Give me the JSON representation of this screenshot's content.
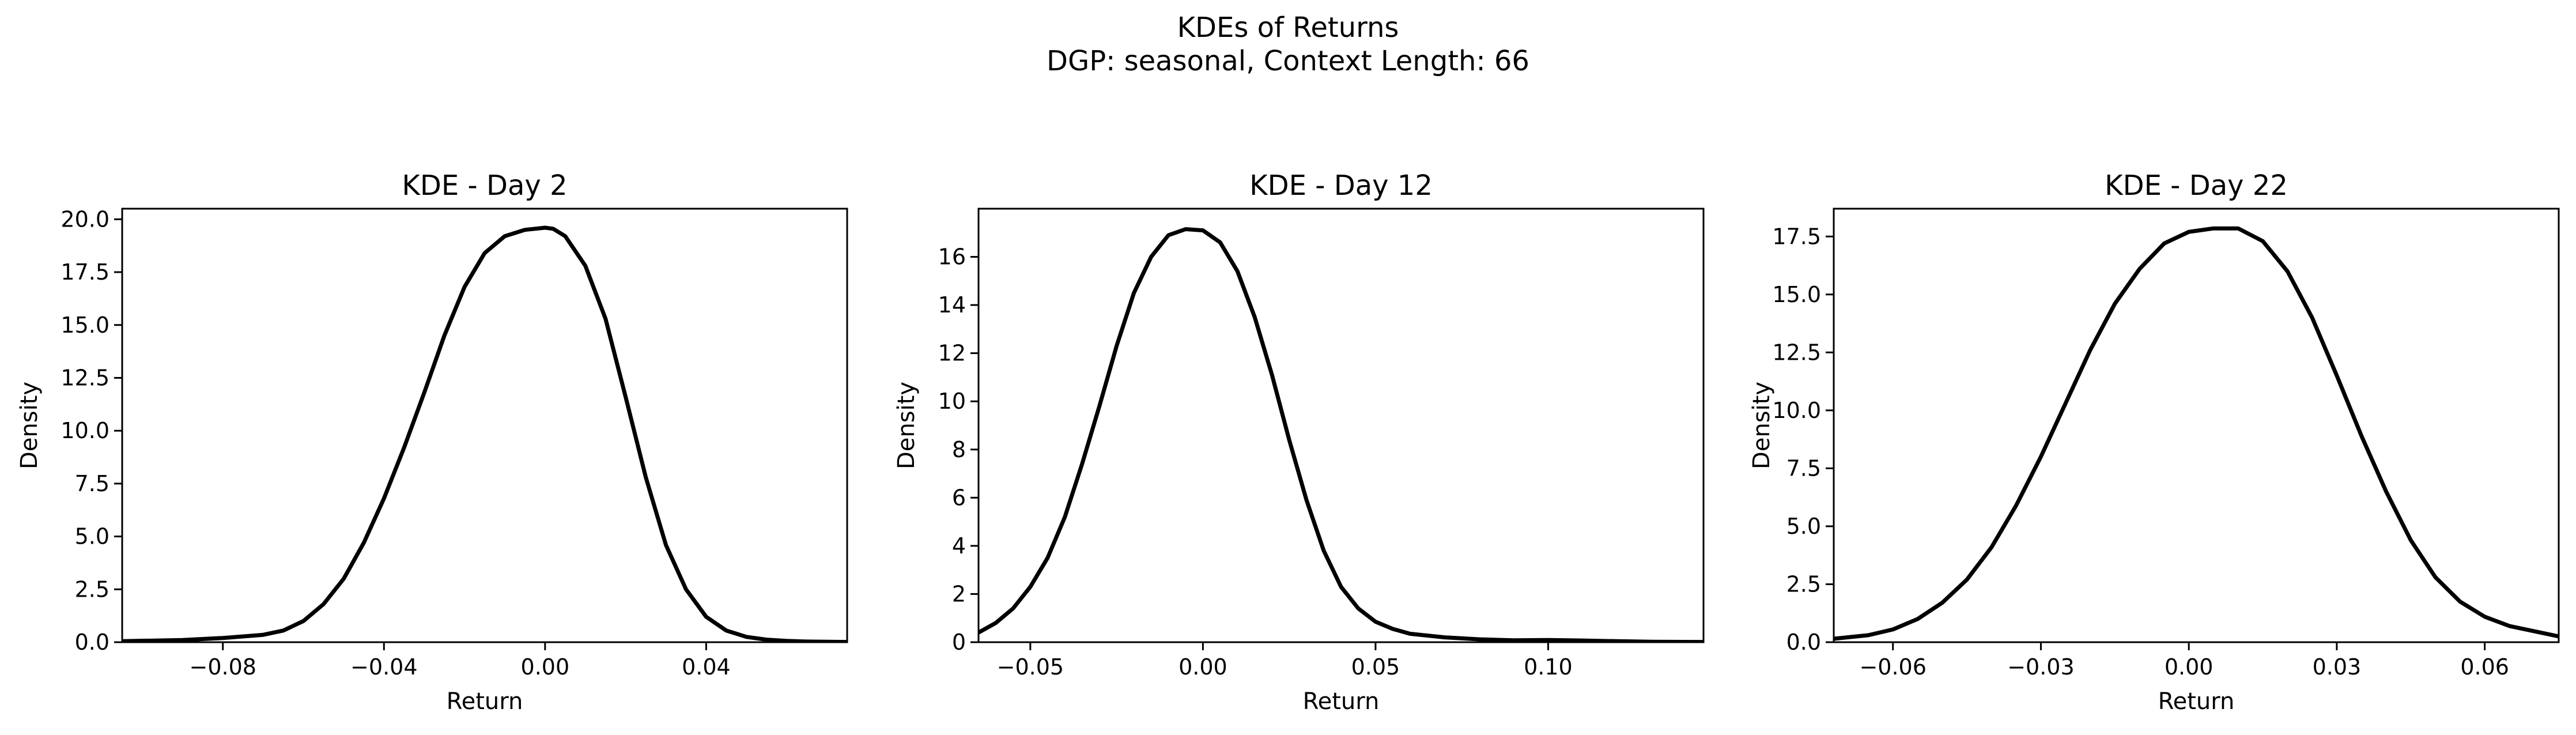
{
  "figure": {
    "suptitle_line1": "KDEs of Returns",
    "suptitle_line2": "DGP: seasonal, Context Length: 66"
  },
  "chart_data": [
    {
      "type": "line",
      "title": "KDE - Day 2",
      "xlabel": "Return",
      "ylabel": "Density",
      "xlim": [
        -0.105,
        0.075
      ],
      "ylim": [
        0,
        20.5
      ],
      "grid": false,
      "xticks": [
        -0.08,
        -0.04,
        0.0,
        0.04
      ],
      "xtick_labels": [
        "−0.08",
        "−0.04",
        "0.00",
        "0.04"
      ],
      "yticks": [
        0,
        2.5,
        5,
        7.5,
        10,
        12.5,
        15,
        17.5,
        20
      ],
      "ytick_labels": [
        "0.0",
        "2.5",
        "5.0",
        "7.5",
        "10.0",
        "12.5",
        "15.0",
        "17.5",
        "20.0"
      ],
      "series": [
        {
          "color": "#000000",
          "x": [
            -0.105,
            -0.09,
            -0.08,
            -0.07,
            -0.065,
            -0.06,
            -0.055,
            -0.05,
            -0.045,
            -0.04,
            -0.035,
            -0.03,
            -0.025,
            -0.02,
            -0.015,
            -0.01,
            -0.005,
            0.0,
            0.002,
            0.005,
            0.01,
            0.015,
            0.02,
            0.025,
            0.03,
            0.035,
            0.04,
            0.045,
            0.05,
            0.055,
            0.06,
            0.065,
            0.075
          ],
          "y": [
            0.05,
            0.1,
            0.2,
            0.35,
            0.55,
            1.0,
            1.8,
            3.0,
            4.7,
            6.8,
            9.2,
            11.8,
            14.5,
            16.8,
            18.4,
            19.2,
            19.5,
            19.6,
            19.55,
            19.2,
            17.8,
            15.3,
            11.6,
            7.8,
            4.6,
            2.5,
            1.2,
            0.55,
            0.25,
            0.12,
            0.06,
            0.03,
            0.01
          ]
        }
      ]
    },
    {
      "type": "line",
      "title": "KDE - Day 12",
      "xlabel": "Return",
      "ylabel": "Density",
      "xlim": [
        -0.065,
        0.145
      ],
      "ylim": [
        0,
        18
      ],
      "grid": false,
      "xticks": [
        -0.05,
        0.0,
        0.05,
        0.1
      ],
      "xtick_labels": [
        "−0.05",
        "0.00",
        "0.05",
        "0.10"
      ],
      "yticks": [
        0,
        2,
        4,
        6,
        8,
        10,
        12,
        14,
        16
      ],
      "ytick_labels": [
        "0",
        "2",
        "4",
        "6",
        "8",
        "10",
        "12",
        "14",
        "16"
      ],
      "series": [
        {
          "color": "#000000",
          "x": [
            -0.065,
            -0.06,
            -0.055,
            -0.05,
            -0.045,
            -0.04,
            -0.035,
            -0.03,
            -0.025,
            -0.02,
            -0.015,
            -0.01,
            -0.005,
            0.0,
            0.005,
            0.01,
            0.015,
            0.02,
            0.025,
            0.03,
            0.035,
            0.04,
            0.045,
            0.05,
            0.055,
            0.06,
            0.07,
            0.08,
            0.09,
            0.1,
            0.11,
            0.12,
            0.13,
            0.145
          ],
          "y": [
            0.4,
            0.8,
            1.4,
            2.3,
            3.5,
            5.2,
            7.4,
            9.8,
            12.3,
            14.5,
            16.0,
            16.9,
            17.15,
            17.1,
            16.6,
            15.4,
            13.5,
            11.1,
            8.4,
            5.9,
            3.8,
            2.3,
            1.4,
            0.85,
            0.55,
            0.35,
            0.2,
            0.12,
            0.08,
            0.09,
            0.07,
            0.04,
            0.02,
            0.01
          ]
        }
      ]
    },
    {
      "type": "line",
      "title": "KDE - Day 22",
      "xlabel": "Return",
      "ylabel": "Density",
      "xlim": [
        -0.072,
        0.075
      ],
      "ylim": [
        0,
        18.7
      ],
      "grid": false,
      "xticks": [
        -0.06,
        -0.03,
        0.0,
        0.03,
        0.06
      ],
      "xtick_labels": [
        "−0.06",
        "−0.03",
        "0.00",
        "0.03",
        "0.06"
      ],
      "yticks": [
        0,
        2.5,
        5,
        7.5,
        10,
        12.5,
        15,
        17.5
      ],
      "ytick_labels": [
        "0.0",
        "2.5",
        "5.0",
        "7.5",
        "10.0",
        "12.5",
        "15.0",
        "17.5"
      ],
      "series": [
        {
          "color": "#000000",
          "x": [
            -0.072,
            -0.065,
            -0.06,
            -0.055,
            -0.05,
            -0.045,
            -0.04,
            -0.035,
            -0.03,
            -0.025,
            -0.02,
            -0.015,
            -0.01,
            -0.005,
            0.0,
            0.005,
            0.01,
            0.015,
            0.02,
            0.025,
            0.03,
            0.035,
            0.04,
            0.045,
            0.05,
            0.055,
            0.06,
            0.065,
            0.075
          ],
          "y": [
            0.15,
            0.3,
            0.55,
            1.0,
            1.7,
            2.7,
            4.1,
            5.9,
            8.0,
            10.3,
            12.6,
            14.6,
            16.1,
            17.2,
            17.7,
            17.85,
            17.85,
            17.3,
            16.0,
            14.0,
            11.5,
            8.9,
            6.5,
            4.4,
            2.8,
            1.75,
            1.1,
            0.7,
            0.25
          ]
        }
      ]
    }
  ]
}
